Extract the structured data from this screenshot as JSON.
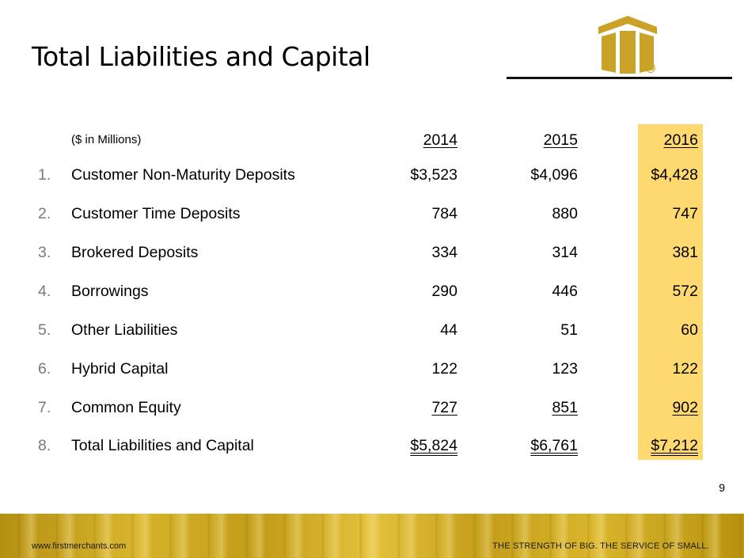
{
  "slide": {
    "title": "Total Liabilities and Capital",
    "units": "($ in Millions)",
    "years": [
      "2014",
      "2015",
      "2016"
    ],
    "rows": [
      {
        "num": "1.",
        "label": "Customer Non-Maturity Deposits",
        "v2014": "$3,523",
        "v2015": "$4,096",
        "v2016": "$4,428"
      },
      {
        "num": "2.",
        "label": "Customer Time Deposits",
        "v2014": "784",
        "v2015": "880",
        "v2016": "747"
      },
      {
        "num": "3.",
        "label": "Brokered Deposits",
        "v2014": "334",
        "v2015": "314",
        "v2016": "381"
      },
      {
        "num": "4.",
        "label": "Borrowings",
        "v2014": "290",
        "v2015": "446",
        "v2016": "572"
      },
      {
        "num": "5.",
        "label": "Other Liabilities",
        "v2014": "44",
        "v2015": "51",
        "v2016": "60"
      },
      {
        "num": "6.",
        "label": "Hybrid Capital",
        "v2014": "122",
        "v2015": "123",
        "v2016": "122"
      },
      {
        "num": "7.",
        "label": "Common Equity",
        "v2014": "727",
        "v2015": "851",
        "v2016": "902"
      },
      {
        "num": "8.",
        "label": "Total Liabilities and Capital",
        "v2014": "$5,824",
        "v2015": "$6,761",
        "v2016": "$7,212"
      }
    ],
    "page_number": "9"
  },
  "logo": {
    "registered_mark": "®"
  },
  "footer": {
    "url": "www.firstmerchants.com",
    "tagline": "THE STRENGTH OF BIG. THE SERVICE OF SMALL."
  },
  "colors": {
    "gold": "#c9a227",
    "highlight": "#fed96f"
  }
}
